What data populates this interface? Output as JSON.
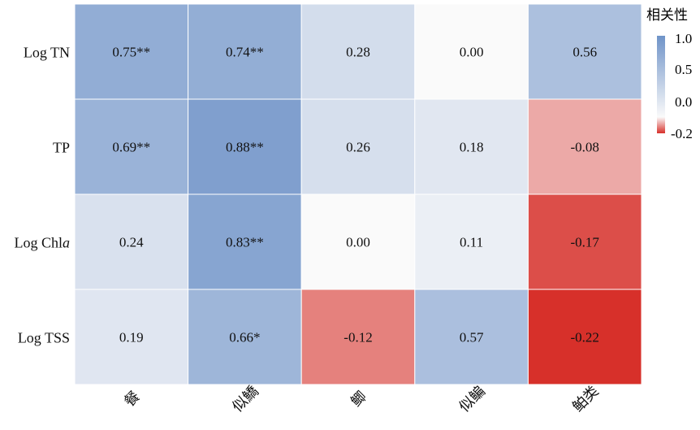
{
  "chart_data": {
    "type": "heatmap",
    "rows": [
      "Log TN",
      "TP",
      "Log Chla",
      "Log TSS"
    ],
    "columns": [
      "餐",
      "似鱎",
      "鲫",
      "似鳊",
      "鲌类"
    ],
    "values": [
      [
        0.75,
        0.74,
        0.28,
        0.0,
        0.56
      ],
      [
        0.69,
        0.88,
        0.26,
        0.18,
        -0.08
      ],
      [
        0.24,
        0.83,
        0.0,
        0.11,
        -0.17
      ],
      [
        0.19,
        0.66,
        -0.12,
        0.57,
        -0.22
      ]
    ],
    "labels": [
      [
        "0.75**",
        "0.74**",
        "0.28",
        "0.00",
        "0.56"
      ],
      [
        "0.69**",
        "0.88**",
        "0.26",
        "0.18",
        "-0.08"
      ],
      [
        "0.24",
        "0.83**",
        "0.00",
        "0.11",
        "-0.17"
      ],
      [
        "0.19",
        "0.66*",
        "-0.12",
        "0.57",
        "-0.22"
      ]
    ],
    "colorbar": {
      "title": "相关性",
      "ticks": [
        "1.0",
        "0.5",
        "0.0",
        "-0.2"
      ],
      "range": [
        -0.2,
        1.0
      ]
    },
    "colors": {
      "positive": "#6f93c8",
      "zero": "#fafafa",
      "negative": "#d7302a"
    }
  }
}
